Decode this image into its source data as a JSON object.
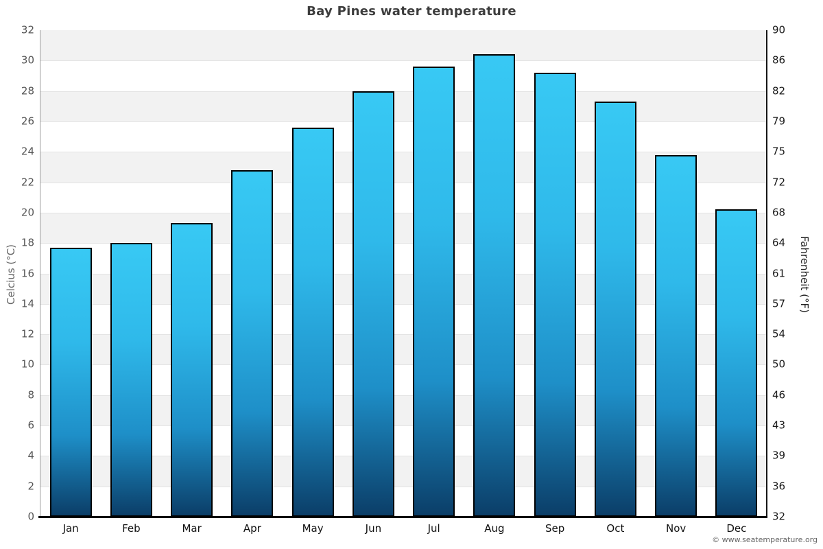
{
  "title": "Bay Pines water temperature",
  "footer": "© www.seatemperature.org",
  "axes": {
    "left_title": "Celcius (°C)",
    "right_title": "Fahrenheit (°F)",
    "celsius_ticks": [
      32,
      30,
      28,
      26,
      24,
      22,
      20,
      18,
      16,
      14,
      12,
      10,
      8,
      6,
      4,
      2,
      0
    ],
    "fahrenheit_ticks": [
      90,
      86,
      82,
      79,
      75,
      72,
      68,
      64,
      61,
      57,
      54,
      50,
      46,
      43,
      39,
      36,
      32
    ]
  },
  "chart_data": {
    "type": "bar",
    "title": "Bay Pines water temperature",
    "categories": [
      "Jan",
      "Feb",
      "Mar",
      "Apr",
      "May",
      "Jun",
      "Jul",
      "Aug",
      "Sep",
      "Oct",
      "Nov",
      "Dec"
    ],
    "series": [
      {
        "name": "Water temperature (°C)",
        "values": [
          17.7,
          18.0,
          19.3,
          22.8,
          25.6,
          28.0,
          29.6,
          30.4,
          29.2,
          27.3,
          23.8,
          20.2
        ]
      }
    ],
    "xlabel": "",
    "ylabel_left": "Celcius (°C)",
    "ylabel_right": "Fahrenheit (°F)",
    "ylim": [
      0,
      32
    ],
    "ytick_step": 2,
    "grid": true,
    "legend": false,
    "plot_style": "alternating horizontal bands every 2 units, gray on 30-32, 26-28, 22-24, 18-20, 14-16, 10-12, 6-8, 2-4"
  },
  "colors": {
    "bar_gradient_top": "#38c9f4",
    "bar_gradient_upper_mid": "#2fb9ea",
    "bar_gradient_lower_mid": "#1e8fc8",
    "bar_gradient_bottom": "#0b3e68",
    "bar_border": "#000000",
    "band_gray": "#f2f2f2",
    "gridline": "#e3e3e3",
    "title_text": "#3d3d3d",
    "left_tick_text": "#555555",
    "right_tick_text": "#1a1a1a",
    "month_text": "#111111",
    "footer_text": "#666666"
  }
}
